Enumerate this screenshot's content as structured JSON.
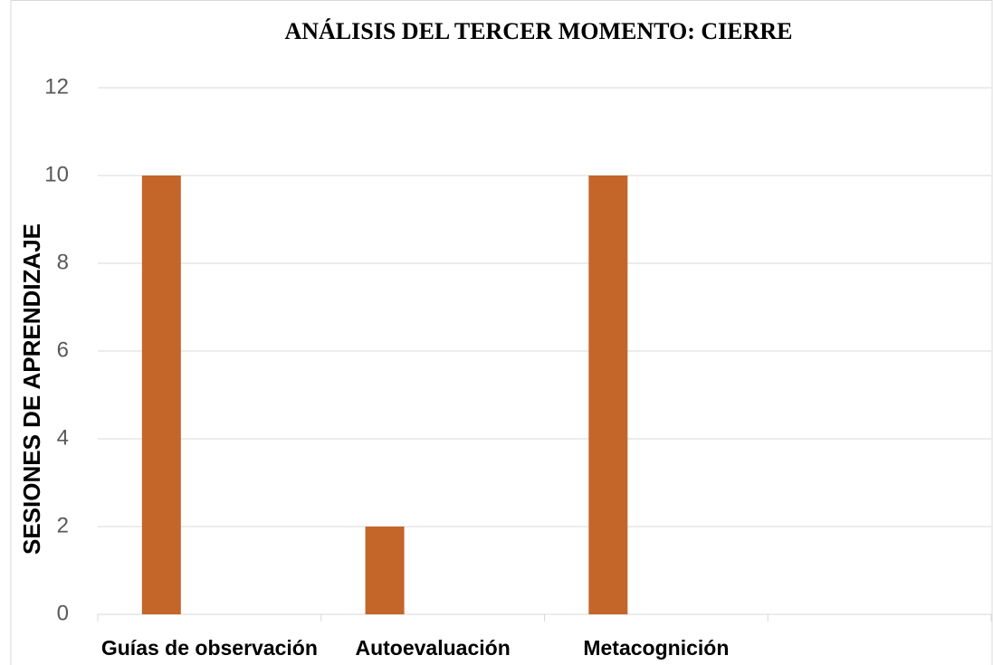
{
  "chart_data": {
    "type": "bar",
    "title": "ANÁLISIS DEL TERCER MOMENTO: CIERRE",
    "y_label": "SESIONES  DE APRENDIZAJE",
    "categories": [
      "Guías de observación",
      "Autoevaluación",
      "Metacognición",
      null
    ],
    "values": [
      10,
      2,
      10,
      null
    ],
    "color": "#c4652a",
    "ylim": [
      0,
      12
    ],
    "yticks": [
      0,
      2,
      4,
      6,
      8,
      10,
      12
    ],
    "grid": true
  }
}
